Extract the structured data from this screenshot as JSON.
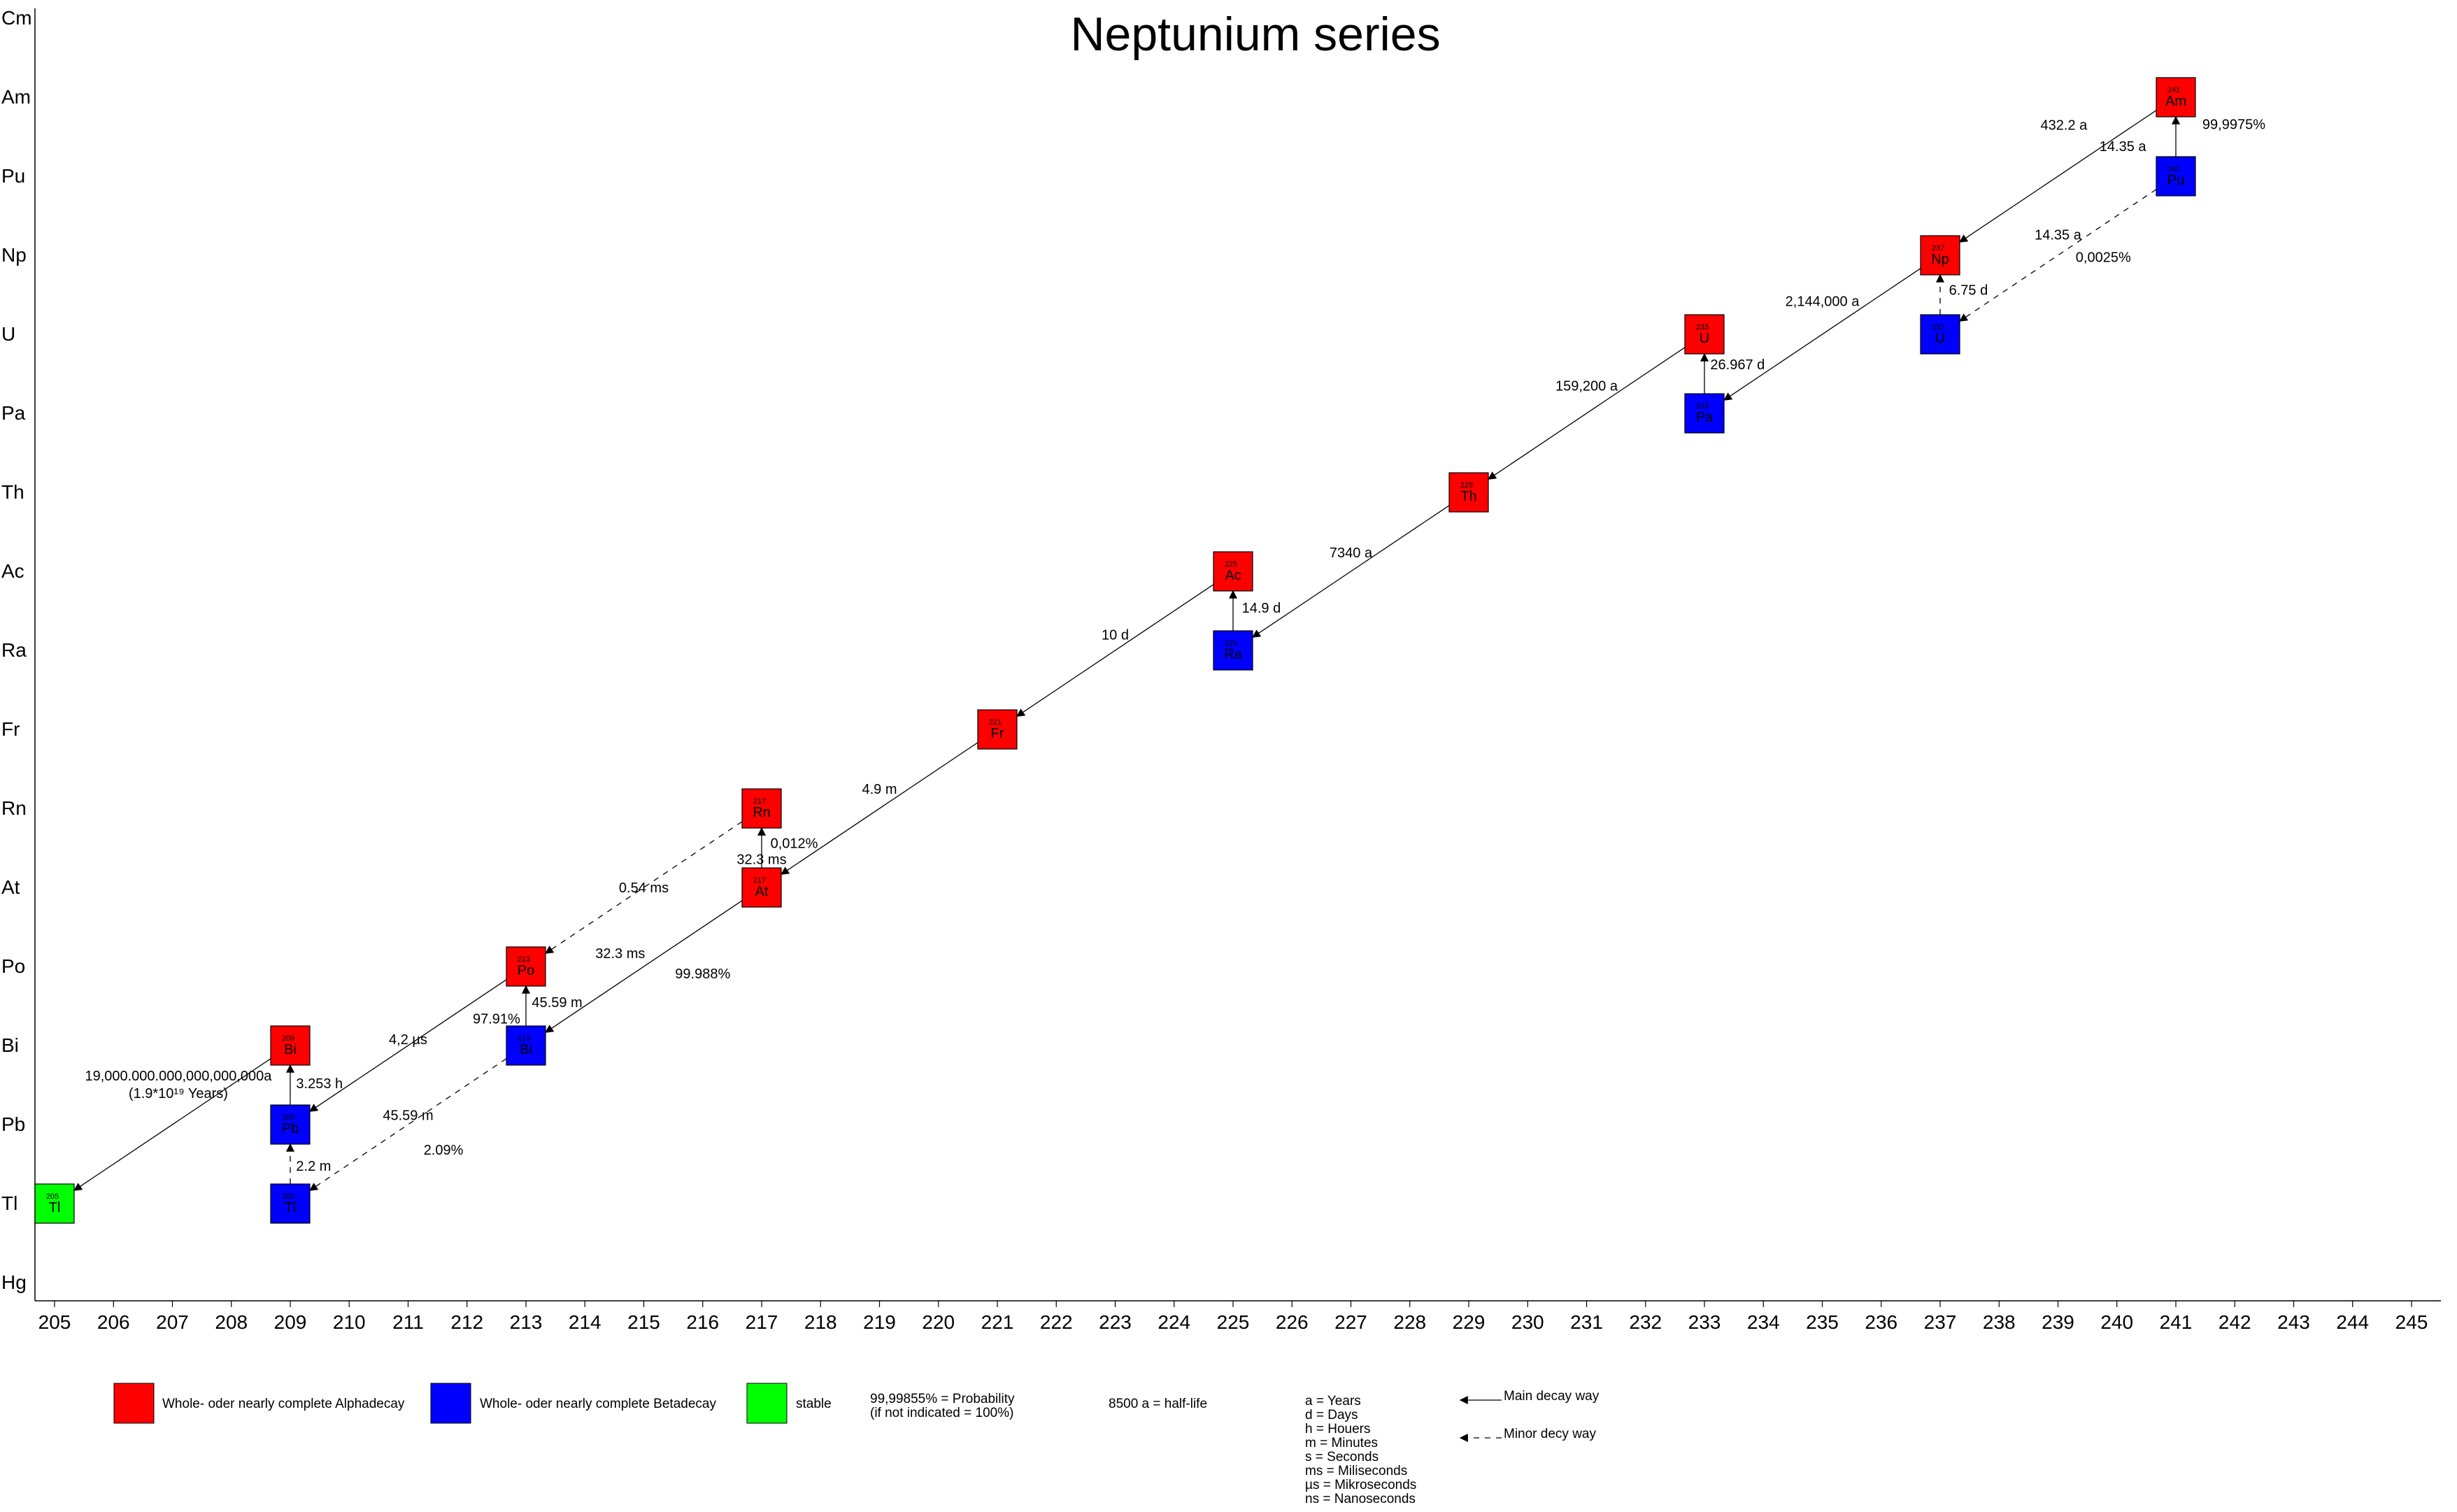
{
  "title": "Neptunium series",
  "colors": {
    "alpha": "#ff0000",
    "beta": "#0000ff",
    "stable": "#00ff00",
    "line": "#000000"
  },
  "y_elements": [
    "Hg",
    "Tl",
    "Pb",
    "Bi",
    "Po",
    "At",
    "Rn",
    "Fr",
    "Ra",
    "Ac",
    "Th",
    "Pa",
    "U",
    "Np",
    "Pu",
    "Am",
    "Cm"
  ],
  "x_ticks": [
    "205",
    "206",
    "207",
    "208",
    "209",
    "210",
    "211",
    "212",
    "213",
    "214",
    "215",
    "216",
    "217",
    "218",
    "219",
    "220",
    "221",
    "222",
    "223",
    "224",
    "225",
    "226",
    "227",
    "228",
    "229",
    "230",
    "231",
    "232",
    "233",
    "234",
    "235",
    "236",
    "237",
    "238",
    "239",
    "240",
    "241",
    "242",
    "243",
    "244",
    "245"
  ],
  "nuclides": [
    {
      "mass": 241,
      "element": "Am",
      "mass_label": "241",
      "symbol": "Am",
      "type": "alpha"
    },
    {
      "mass": 241,
      "element": "Pu",
      "mass_label": "241",
      "symbol": "Pu",
      "type": "beta"
    },
    {
      "mass": 237,
      "element": "Np",
      "mass_label": "237",
      "symbol": "Np",
      "type": "alpha"
    },
    {
      "mass": 237,
      "element": "U",
      "mass_label": "237",
      "symbol": "U",
      "type": "beta"
    },
    {
      "mass": 233,
      "element": "U",
      "mass_label": "233",
      "symbol": "U",
      "type": "alpha"
    },
    {
      "mass": 233,
      "element": "Pa",
      "mass_label": "233",
      "symbol": "Pa",
      "type": "beta"
    },
    {
      "mass": 229,
      "element": "Th",
      "mass_label": "229",
      "symbol": "Th",
      "type": "alpha"
    },
    {
      "mass": 225,
      "element": "Ac",
      "mass_label": "225",
      "symbol": "Ac",
      "type": "alpha"
    },
    {
      "mass": 225,
      "element": "Ra",
      "mass_label": "225",
      "symbol": "Ra",
      "type": "beta"
    },
    {
      "mass": 221,
      "element": "Fr",
      "mass_label": "221",
      "symbol": "Fr",
      "type": "alpha"
    },
    {
      "mass": 217,
      "element": "Rn",
      "mass_label": "217",
      "symbol": "Rn",
      "type": "alpha"
    },
    {
      "mass": 217,
      "element": "At",
      "mass_label": "217",
      "symbol": "At",
      "type": "alpha"
    },
    {
      "mass": 213,
      "element": "Po",
      "mass_label": "213",
      "symbol": "Po",
      "type": "alpha"
    },
    {
      "mass": 213,
      "element": "Bi",
      "mass_label": "213",
      "symbol": "Bi",
      "type": "beta"
    },
    {
      "mass": 209,
      "element": "Bi",
      "mass_label": "209",
      "symbol": "Bi",
      "type": "alpha"
    },
    {
      "mass": 209,
      "element": "Pb",
      "mass_label": "209",
      "symbol": "Pb",
      "type": "beta"
    },
    {
      "mass": 209,
      "element": "Tl",
      "mass_label": "209",
      "symbol": "Tl",
      "type": "beta"
    },
    {
      "mass": 205,
      "element": "Tl",
      "mass_label": "205",
      "symbol": "Tl",
      "type": "stable"
    }
  ],
  "decays": [
    {
      "from": [
        241,
        "Am"
      ],
      "to": [
        237,
        "Np"
      ],
      "style": "main"
    },
    {
      "from": [
        241,
        "Pu"
      ],
      "to": [
        241,
        "Am"
      ],
      "style": "main"
    },
    {
      "from": [
        241,
        "Pu"
      ],
      "to": [
        237,
        "U"
      ],
      "style": "minor"
    },
    {
      "from": [
        237,
        "U"
      ],
      "to": [
        237,
        "Np"
      ],
      "style": "minor"
    },
    {
      "from": [
        237,
        "Np"
      ],
      "to": [
        233,
        "Pa"
      ],
      "style": "main"
    },
    {
      "from": [
        233,
        "Pa"
      ],
      "to": [
        233,
        "U"
      ],
      "style": "main"
    },
    {
      "from": [
        233,
        "U"
      ],
      "to": [
        229,
        "Th"
      ],
      "style": "main"
    },
    {
      "from": [
        229,
        "Th"
      ],
      "to": [
        225,
        "Ra"
      ],
      "style": "main"
    },
    {
      "from": [
        225,
        "Ra"
      ],
      "to": [
        225,
        "Ac"
      ],
      "style": "main"
    },
    {
      "from": [
        225,
        "Ac"
      ],
      "to": [
        221,
        "Fr"
      ],
      "style": "main"
    },
    {
      "from": [
        221,
        "Fr"
      ],
      "to": [
        217,
        "At"
      ],
      "style": "main"
    },
    {
      "from": [
        217,
        "At"
      ],
      "to": [
        217,
        "Rn"
      ],
      "style": "main"
    },
    {
      "from": [
        217,
        "Rn"
      ],
      "to": [
        213,
        "Po"
      ],
      "style": "minor"
    },
    {
      "from": [
        217,
        "At"
      ],
      "to": [
        213,
        "Bi"
      ],
      "style": "main"
    },
    {
      "from": [
        213,
        "Bi"
      ],
      "to": [
        213,
        "Po"
      ],
      "style": "main"
    },
    {
      "from": [
        213,
        "Po"
      ],
      "to": [
        209,
        "Pb"
      ],
      "style": "main"
    },
    {
      "from": [
        213,
        "Bi"
      ],
      "to": [
        209,
        "Tl"
      ],
      "style": "minor"
    },
    {
      "from": [
        209,
        "Tl"
      ],
      "to": [
        209,
        "Pb"
      ],
      "style": "minor"
    },
    {
      "from": [
        209,
        "Pb"
      ],
      "to": [
        209,
        "Bi"
      ],
      "style": "main"
    },
    {
      "from": [
        209,
        "Bi"
      ],
      "to": [
        205,
        "Tl"
      ],
      "style": "main"
    }
  ],
  "labels": [
    {
      "text": "432.2 a",
      "mass": 239.1,
      "element": "Np",
      "dz": 1.65
    },
    {
      "text": "99,9975%",
      "mass": 241.45,
      "element": "Pu",
      "dz": 0.66,
      "anchor": "start"
    },
    {
      "text": "14.35 a",
      "mass": 240.1,
      "element": "Pu",
      "dz": 0.38
    },
    {
      "text": "14.35 a",
      "mass": 239.0,
      "element": "U",
      "dz": 1.26
    },
    {
      "text": "0,0025%",
      "mass": 239.3,
      "element": "U",
      "dz": 0.98,
      "anchor": "start"
    },
    {
      "text": "6.75 d",
      "mass": 237.15,
      "element": "U",
      "dz": 0.56,
      "anchor": "start"
    },
    {
      "text": "2,144,000 a",
      "mass": 235.0,
      "element": "U",
      "dz": 0.42
    },
    {
      "text": "26.967 d",
      "mass": 233.1,
      "element": "Pa",
      "dz": 0.62,
      "anchor": "start"
    },
    {
      "text": "159,200 a",
      "mass": 231.0,
      "element": "Pa",
      "dz": 0.35
    },
    {
      "text": "7340 a",
      "mass": 227.0,
      "element": "Ra",
      "dz": 1.24
    },
    {
      "text": "14.9 d",
      "mass": 225.15,
      "element": "Ra",
      "dz": 0.54,
      "anchor": "start"
    },
    {
      "text": "10 d",
      "mass": 223.0,
      "element": "Fr",
      "dz": 1.2
    },
    {
      "text": "4.9 m",
      "mass": 219.0,
      "element": "At",
      "dz": 1.25
    },
    {
      "text": "0,012%",
      "mass": 217.15,
      "element": "At",
      "dz": 0.56,
      "anchor": "start"
    },
    {
      "text": "32.3 ms",
      "mass": 217.0,
      "element": "At",
      "dz": 0.36
    },
    {
      "text": "0.54 ms",
      "mass": 215.0,
      "element": "At",
      "dz": 0.0
    },
    {
      "text": "32.3 ms",
      "mass": 214.6,
      "element": "Po",
      "dz": 0.17
    },
    {
      "text": "99.988%",
      "mass": 216.0,
      "element": "Po",
      "dz": -0.09
    },
    {
      "text": "97.91%",
      "mass": 212.5,
      "element": "Bi",
      "dz": 0.34
    },
    {
      "text": "45.59 m",
      "mass": 213.1,
      "element": "Bi",
      "dz": 0.55,
      "anchor": "start"
    },
    {
      "text": "4,2 µs",
      "mass": 211.0,
      "element": "Bi",
      "dz": 0.08
    },
    {
      "text": "3.253 h",
      "mass": 209.1,
      "element": "Pb",
      "dz": 0.52,
      "anchor": "start"
    },
    {
      "text": "45.59 m",
      "mass": 211.0,
      "element": "Pb",
      "dz": 0.12
    },
    {
      "text": "2.09%",
      "mass": 211.6,
      "element": "Pb",
      "dz": -0.32
    },
    {
      "text": "2.2 m",
      "mass": 209.1,
      "element": "Tl",
      "dz": 0.48,
      "anchor": "start"
    },
    {
      "text": "19,000.000.000,000,000,000a",
      "mass": 207.1,
      "element": "Bi",
      "dz": -0.38
    },
    {
      "text": "(1.9*10¹⁹ Years)",
      "mass": 207.1,
      "element": "Pb",
      "dz": 0.4
    }
  ],
  "legend": {
    "alpha": "Whole- oder nearly complete Alphadecay",
    "beta": "Whole- oder nearly complete Betadecay",
    "stable": "stable",
    "probability_line1": "99,99855% = Probability",
    "probability_line2": "(if not indicated = 100%)",
    "halflife": "8500 a = half-life",
    "units": [
      "a = Years",
      "d = Days",
      "h = Houers",
      "m = Minutes",
      "s = Seconds",
      "ms = Miliseconds",
      "µs = Mikroseconds",
      "ns = Nanoseconds"
    ],
    "main_way": "Main decay way",
    "minor_way": "Minor decy way"
  }
}
